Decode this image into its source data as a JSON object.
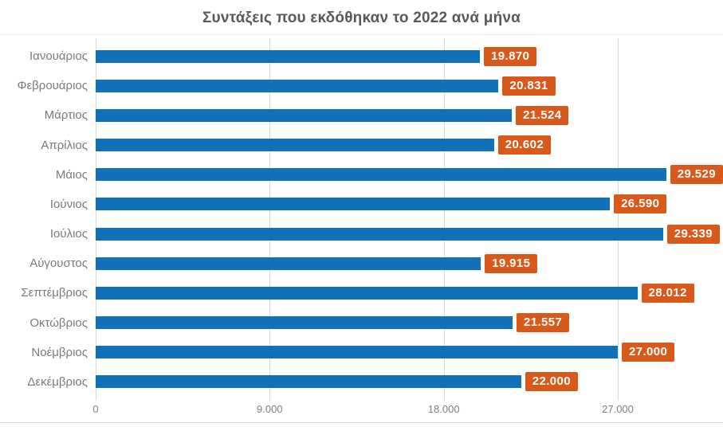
{
  "chart_data": {
    "type": "bar",
    "orientation": "horizontal",
    "title": "Συντάξεις που εκδόθηκαν το 2022 ανά μήνα",
    "categories": [
      "Ιανουάριος",
      "Φεβρουάριος",
      "Μάρτιος",
      "Απρίλιος",
      "Μάιος",
      "Ιούνιος",
      "Ιούλιος",
      "Αύγουστος",
      "Σεπτέμβριος",
      "Οκτώβριος",
      "Νοέμβριος",
      "Δεκέμβριος"
    ],
    "values": [
      19870,
      20831,
      21524,
      20602,
      29529,
      26590,
      29339,
      19915,
      28012,
      21557,
      27000,
      22000
    ],
    "value_labels": [
      "19.870",
      "20.831",
      "21.524",
      "20.602",
      "29.529",
      "26.590",
      "29.339",
      "19.915",
      "28.012",
      "21.557",
      "27.000",
      "22.000"
    ],
    "x_tick_values": [
      0,
      9000,
      18000,
      27000
    ],
    "x_tick_labels": [
      "0",
      "9.000",
      "18.000",
      "27.000"
    ],
    "xlim": [
      0,
      31740
    ],
    "grid": true,
    "legend": false,
    "bar_color": "#1172ba",
    "value_label_bg_color": "#d9591b",
    "value_label_text_color": "#ffffff",
    "title_color": "#595959",
    "axis_text_color": "#7f7f7f",
    "gridline_color": "#d9d9d9"
  }
}
